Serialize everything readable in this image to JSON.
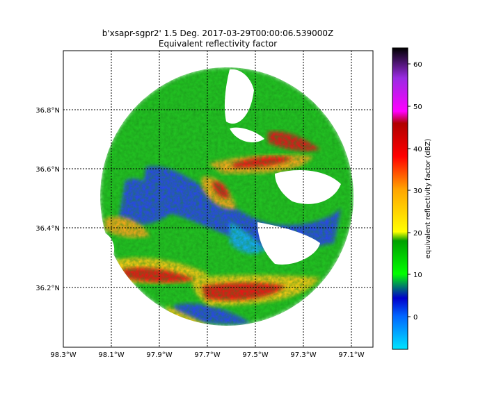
{
  "title": {
    "line1": "b'xsapr-sgpr2' 1.5 Deg. 2017-03-29T00:00:06.539000Z",
    "line2": "Equivalent reflectivity factor"
  },
  "map": {
    "x_ticks": [
      "98.3°W",
      "98.1°W",
      "97.9°W",
      "97.7°W",
      "97.5°W",
      "97.3°W",
      "97.1°W"
    ],
    "y_ticks": [
      "36.8°N",
      "36.6°N",
      "36.4°N",
      "36.2°N"
    ],
    "lon_range": [
      -98.3,
      -97.02
    ],
    "lat_range": [
      36.0,
      37.0
    ],
    "grid": true
  },
  "colorbar": {
    "label": "equivalent reflectivity factor (dBZ)",
    "ticks": [
      "0",
      "10",
      "20",
      "30",
      "40",
      "50",
      "60"
    ],
    "range": [
      -8,
      64
    ],
    "colors": [
      "#00e5ff",
      "#0066ff",
      "#0000cc",
      "#00ff00",
      "#00a000",
      "#ffff00",
      "#ffa500",
      "#ff0000",
      "#b00000",
      "#ff00ff",
      "#9a2be2",
      "#000000"
    ]
  },
  "chart_data": {
    "type": "heatmap",
    "title": "b'xsapr-sgpr2' 1.5 Deg. 2017-03-29T00:00:06.539000Z",
    "subtitle": "Equivalent reflectivity factor",
    "field": "equivalent reflectivity factor (dBZ)",
    "xlabel": "",
    "ylabel": "",
    "xlim": [
      -98.3,
      -97.02
    ],
    "ylim": [
      36.0,
      37.0
    ],
    "clim": [
      -8,
      64
    ],
    "radar_center": {
      "lon": -97.6,
      "lat": 36.5
    },
    "grid": true
  }
}
